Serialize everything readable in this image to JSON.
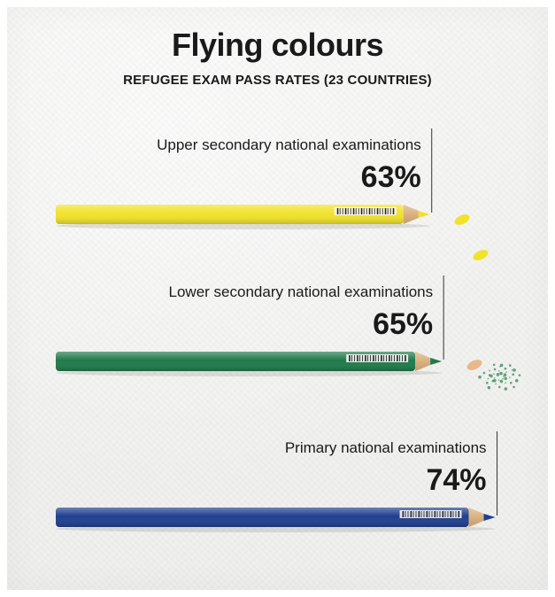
{
  "chart_data": {
    "type": "bar",
    "orientation": "horizontal",
    "title": "Flying colours",
    "subtitle": "REFUGEE EXAM PASS RATES (23 COUNTRIES)",
    "categories": [
      "Upper secondary national examinations",
      "Lower secondary national examinations",
      "Primary national examinations"
    ],
    "values": [
      63,
      65,
      74
    ],
    "value_labels": [
      "63%",
      "65%",
      "74%"
    ],
    "unit": "%",
    "colors": [
      "#f1e22a",
      "#1f7a4a",
      "#1f3f8f"
    ],
    "grid": false,
    "legend": "none"
  }
}
